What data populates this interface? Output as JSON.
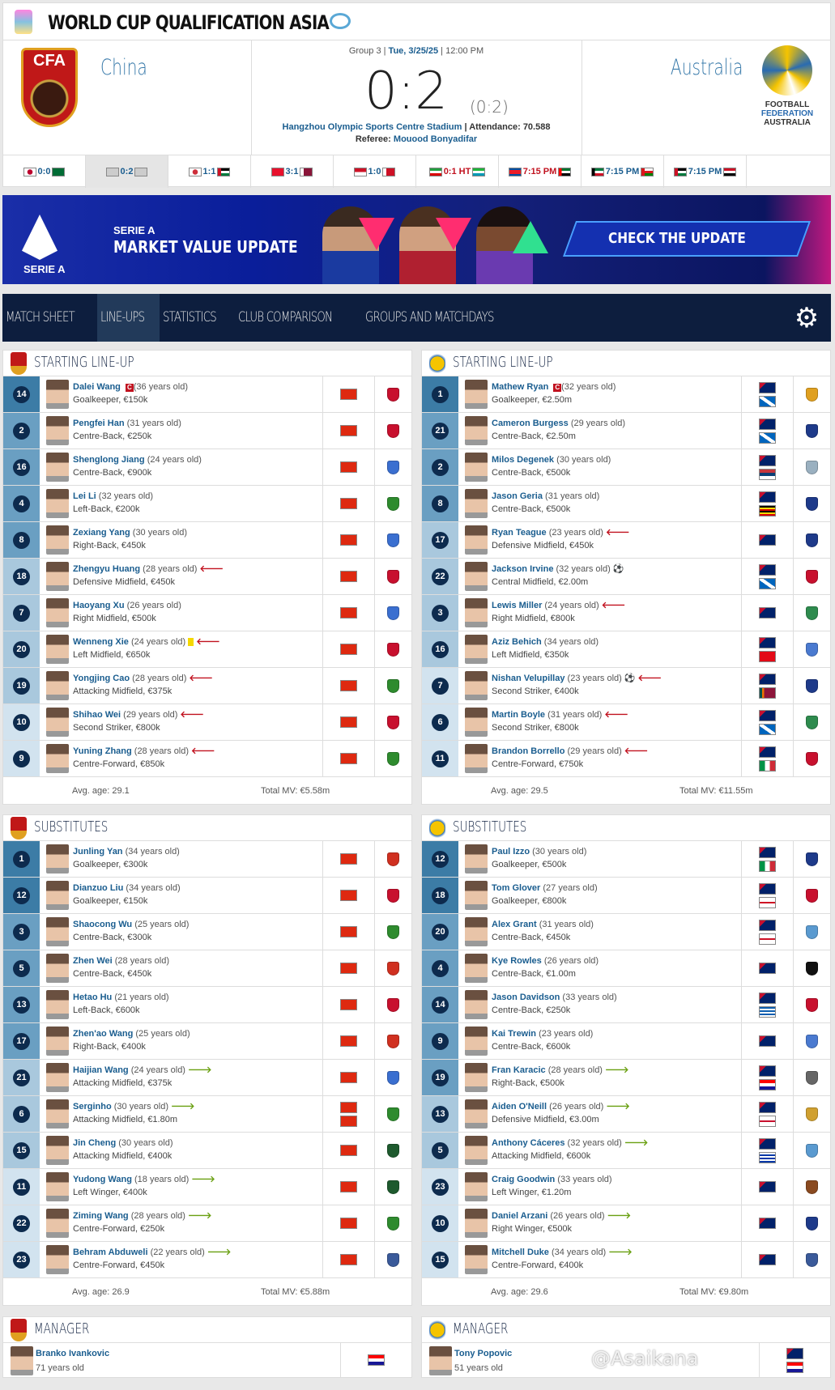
{
  "competition": {
    "title": "WORLD CUP QUALIFICATION ASIA",
    "logo_icon": "competition-logo",
    "stadium_icon": "stadium-plus-icon"
  },
  "match": {
    "home": "China",
    "away": "Australia",
    "home_crest_text": "CFA",
    "away_crest_lines": [
      "FOOTBALL",
      "FEDERATION",
      "AUSTRALIA"
    ],
    "group": "Group 3",
    "date": "Tue, 3/25/25",
    "time": "12:00 PM",
    "score": "0:2",
    "halftime": "(0:2)",
    "stadium": "Hangzhou Olympic Sports Centre Stadium",
    "attendance_label": "Attendance:",
    "attendance": "70.588",
    "referee_label": "Referee:",
    "referee": "Mouood Bonyadifar"
  },
  "other_matches": [
    {
      "home": "JPN",
      "away": "KSA",
      "result": "0:0",
      "state": "final"
    },
    {
      "home": "CHN",
      "away": "AUS",
      "result": "0:2",
      "state": "final",
      "active": true
    },
    {
      "home": "KOR",
      "away": "JOR",
      "result": "1:1",
      "state": "final"
    },
    {
      "home": "KGZ",
      "away": "QAT",
      "result": "3:1",
      "state": "final"
    },
    {
      "home": "IDN",
      "away": "BHR",
      "result": "1:0",
      "state": "final"
    },
    {
      "home": "IRN",
      "away": "UZB",
      "result": "0:1 HT",
      "state": "live"
    },
    {
      "home": "PRK",
      "away": "UAE",
      "result": "7:15 PM",
      "state": "live"
    },
    {
      "home": "KUW",
      "away": "OMA",
      "result": "7:15 PM",
      "state": "upcoming"
    },
    {
      "home": "PLE",
      "away": "IRQ",
      "result": "7:15 PM",
      "state": "upcoming"
    }
  ],
  "banner": {
    "logo_text": "SERIE A",
    "line1": "SERIE A",
    "line2": "MARKET VALUE UPDATE",
    "cta": "CHECK THE UPDATE"
  },
  "nav": {
    "tabs": [
      "MATCH SHEET",
      "LINE-UPS",
      "STATISTICS",
      "CLUB COMPARISON",
      "GROUPS AND MATCHDAYS"
    ],
    "active": 1,
    "settings_icon": "gear-icon"
  },
  "labels": {
    "starting": "STARTING LINE-UP",
    "subs": "SUBSTITUTES",
    "manager": "MANAGER",
    "avg_prefix": "Avg. age: ",
    "mv_prefix": "Total MV: "
  },
  "lineups": {
    "home_start": {
      "avg_age": "29.1",
      "total_mv": "€5.58m",
      "players": [
        {
          "num": "14",
          "name": "Dalei Wang",
          "age": "(36 years old)",
          "pos": "Goalkeeper, €150k",
          "g": 0,
          "nat": [
            "CN"
          ],
          "club": "#c8102e",
          "ev": [
            "cap"
          ]
        },
        {
          "num": "2",
          "name": "Pengfei Han",
          "age": "(31 years old)",
          "pos": "Centre-Back, €250k",
          "g": 1,
          "nat": [
            "CN"
          ],
          "club": "#c8102e",
          "ev": []
        },
        {
          "num": "16",
          "name": "Shenglong Jiang",
          "age": "(24 years old)",
          "pos": "Centre-Back, €900k",
          "g": 1,
          "nat": [
            "CN"
          ],
          "club": "#3a6fd0",
          "ev": []
        },
        {
          "num": "4",
          "name": "Lei Li",
          "age": "(32 years old)",
          "pos": "Left-Back, €200k",
          "g": 1,
          "nat": [
            "CN"
          ],
          "club": "#2e8b2e",
          "ev": []
        },
        {
          "num": "8",
          "name": "Zexiang Yang",
          "age": "(30 years old)",
          "pos": "Right-Back, €450k",
          "g": 1,
          "nat": [
            "CN"
          ],
          "club": "#3a6fd0",
          "ev": []
        },
        {
          "num": "18",
          "name": "Zhengyu Huang",
          "age": "(28 years old)",
          "pos": "Defensive Midfield, €450k",
          "g": 2,
          "nat": [
            "CN"
          ],
          "club": "#c8102e",
          "ev": [
            "off"
          ]
        },
        {
          "num": "7",
          "name": "Haoyang Xu",
          "age": "(26 years old)",
          "pos": "Right Midfield, €500k",
          "g": 2,
          "nat": [
            "CN"
          ],
          "club": "#3a6fd0",
          "ev": []
        },
        {
          "num": "20",
          "name": "Wenneng Xie",
          "age": "(24 years old)",
          "pos": "Left Midfield, €650k",
          "g": 2,
          "nat": [
            "CN"
          ],
          "club": "#c8102e",
          "ev": [
            "yc",
            "off"
          ]
        },
        {
          "num": "19",
          "name": "Yongjing Cao",
          "age": "(28 years old)",
          "pos": "Attacking Midfield, €375k",
          "g": 2,
          "nat": [
            "CN"
          ],
          "club": "#2e8b2e",
          "ev": [
            "off"
          ]
        },
        {
          "num": "10",
          "name": "Shihao Wei",
          "age": "(29 years old)",
          "pos": "Second Striker, €800k",
          "g": 3,
          "nat": [
            "CN"
          ],
          "club": "#c8102e",
          "ev": [
            "off"
          ]
        },
        {
          "num": "9",
          "name": "Yuning Zhang",
          "age": "(28 years old)",
          "pos": "Centre-Forward, €850k",
          "g": 3,
          "nat": [
            "CN"
          ],
          "club": "#2e8b2e",
          "ev": [
            "off"
          ]
        }
      ]
    },
    "away_start": {
      "avg_age": "29.5",
      "total_mv": "€11.55m",
      "players": [
        {
          "num": "1",
          "name": "Mathew Ryan",
          "age": "(32 years old)",
          "pos": "Goalkeeper, €2.50m",
          "g": 0,
          "nat": [
            "AU",
            "SCO"
          ],
          "club": "#e0a020",
          "ev": [
            "cap"
          ]
        },
        {
          "num": "21",
          "name": "Cameron Burgess",
          "age": "(29 years old)",
          "pos": "Centre-Back, €2.50m",
          "g": 1,
          "nat": [
            "AU",
            "SCO"
          ],
          "club": "#1e3a8a",
          "ev": []
        },
        {
          "num": "2",
          "name": "Milos Degenek",
          "age": "(30 years old)",
          "pos": "Centre-Back, €500k",
          "g": 1,
          "nat": [
            "AU",
            "SRB"
          ],
          "club": "#9ab0c0",
          "ev": []
        },
        {
          "num": "8",
          "name": "Jason Geria",
          "age": "(31 years old)",
          "pos": "Centre-Back, €500k",
          "g": 1,
          "nat": [
            "AU",
            "UGA"
          ],
          "club": "#1e3a8a",
          "ev": []
        },
        {
          "num": "17",
          "name": "Ryan Teague",
          "age": "(23 years old)",
          "pos": "Defensive Midfield, €450k",
          "g": 2,
          "nat": [
            "AU"
          ],
          "club": "#1e3a8a",
          "ev": [
            "off"
          ]
        },
        {
          "num": "22",
          "name": "Jackson Irvine",
          "age": "(32 years old)",
          "pos": "Central Midfield, €2.00m",
          "g": 2,
          "nat": [
            "AU",
            "SCO"
          ],
          "club": "#c8102e",
          "ev": [
            "goal"
          ]
        },
        {
          "num": "3",
          "name": "Lewis Miller",
          "age": "(24 years old)",
          "pos": "Right Midfield, €800k",
          "g": 2,
          "nat": [
            "AU"
          ],
          "club": "#2e8b4e",
          "ev": [
            "off"
          ]
        },
        {
          "num": "16",
          "name": "Aziz Behich",
          "age": "(34 years old)",
          "pos": "Left Midfield, €350k",
          "g": 2,
          "nat": [
            "AU",
            "TUR"
          ],
          "club": "#4a7ad0",
          "ev": []
        },
        {
          "num": "7",
          "name": "Nishan Velupillay",
          "age": "(23 years old)",
          "pos": "Second Striker, €400k",
          "g": 3,
          "nat": [
            "AU",
            "SRI"
          ],
          "club": "#1e3a8a",
          "ev": [
            "goal",
            "off"
          ]
        },
        {
          "num": "6",
          "name": "Martin Boyle",
          "age": "(31 years old)",
          "pos": "Second Striker, €800k",
          "g": 3,
          "nat": [
            "AU",
            "SCO"
          ],
          "club": "#2e8b4e",
          "ev": [
            "off"
          ]
        },
        {
          "num": "11",
          "name": "Brandon Borrello",
          "age": "(29 years old)",
          "pos": "Centre-Forward, €750k",
          "g": 3,
          "nat": [
            "AU",
            "ITA"
          ],
          "club": "#c8102e",
          "ev": [
            "off"
          ]
        }
      ]
    },
    "home_subs": {
      "avg_age": "26.9",
      "total_mv": "€5.88m",
      "players": [
        {
          "num": "1",
          "name": "Junling Yan",
          "age": "(34 years old)",
          "pos": "Goalkeeper, €300k",
          "g": 0,
          "nat": [
            "CN"
          ],
          "club": "#d03020",
          "ev": []
        },
        {
          "num": "12",
          "name": "Dianzuo Liu",
          "age": "(34 years old)",
          "pos": "Goalkeeper, €150k",
          "g": 0,
          "nat": [
            "CN"
          ],
          "club": "#c8102e",
          "ev": []
        },
        {
          "num": "3",
          "name": "Shaocong Wu",
          "age": "(25 years old)",
          "pos": "Centre-Back, €300k",
          "g": 1,
          "nat": [
            "CN"
          ],
          "club": "#2e8b2e",
          "ev": []
        },
        {
          "num": "5",
          "name": "Zhen Wei",
          "age": "(28 years old)",
          "pos": "Centre-Back, €450k",
          "g": 1,
          "nat": [
            "CN"
          ],
          "club": "#d03020",
          "ev": []
        },
        {
          "num": "13",
          "name": "Hetao Hu",
          "age": "(21 years old)",
          "pos": "Left-Back, €600k",
          "g": 1,
          "nat": [
            "CN"
          ],
          "club": "#c8102e",
          "ev": []
        },
        {
          "num": "17",
          "name": "Zhen'ao Wang",
          "age": "(25 years old)",
          "pos": "Right-Back, €400k",
          "g": 1,
          "nat": [
            "CN"
          ],
          "club": "#d03020",
          "ev": []
        },
        {
          "num": "21",
          "name": "Haijian Wang",
          "age": "(24 years old)",
          "pos": "Attacking Midfield, €375k",
          "g": 2,
          "nat": [
            "CN"
          ],
          "club": "#3a6fd0",
          "ev": [
            "on"
          ]
        },
        {
          "num": "6",
          "name": "Serginho",
          "age": "(30 years old)",
          "pos": "Attacking Midfield, €1.80m",
          "g": 2,
          "nat": [
            "CN",
            "CN"
          ],
          "club": "#2e8b2e",
          "ev": [
            "on"
          ]
        },
        {
          "num": "15",
          "name": "Jin Cheng",
          "age": "(30 years old)",
          "pos": "Attacking Midfield, €400k",
          "g": 2,
          "nat": [
            "CN"
          ],
          "club": "#1e5a2e",
          "ev": []
        },
        {
          "num": "11",
          "name": "Yudong Wang",
          "age": "(18 years old)",
          "pos": "Left Winger, €400k",
          "g": 3,
          "nat": [
            "CN"
          ],
          "club": "#1e5a2e",
          "ev": [
            "on"
          ]
        },
        {
          "num": "22",
          "name": "Ziming Wang",
          "age": "(28 years old)",
          "pos": "Centre-Forward, €250k",
          "g": 3,
          "nat": [
            "CN"
          ],
          "club": "#2e8b2e",
          "ev": [
            "on"
          ]
        },
        {
          "num": "23",
          "name": "Behram Abduweli",
          "age": "(22 years old)",
          "pos": "Centre-Forward, €450k",
          "g": 3,
          "nat": [
            "CN"
          ],
          "club": "#3a5a9a",
          "ev": [
            "on"
          ]
        }
      ]
    },
    "away_subs": {
      "avg_age": "29.6",
      "total_mv": "€9.80m",
      "players": [
        {
          "num": "12",
          "name": "Paul Izzo",
          "age": "(30 years old)",
          "pos": "Goalkeeper, €500k",
          "g": 0,
          "nat": [
            "AU",
            "ITA"
          ],
          "club": "#1e3a8a",
          "ev": []
        },
        {
          "num": "18",
          "name": "Tom Glover",
          "age": "(27 years old)",
          "pos": "Goalkeeper, €800k",
          "g": 0,
          "nat": [
            "AU",
            "ENG"
          ],
          "club": "#c8102e",
          "ev": []
        },
        {
          "num": "20",
          "name": "Alex Grant",
          "age": "(31 years old)",
          "pos": "Centre-Back, €450k",
          "g": 1,
          "nat": [
            "AU",
            "ENG"
          ],
          "club": "#5a9ad0",
          "ev": []
        },
        {
          "num": "4",
          "name": "Kye Rowles",
          "age": "(26 years old)",
          "pos": "Centre-Back, €1.00m",
          "g": 1,
          "nat": [
            "AU"
          ],
          "club": "#111111",
          "ev": []
        },
        {
          "num": "14",
          "name": "Jason Davidson",
          "age": "(33 years old)",
          "pos": "Centre-Back, €250k",
          "g": 1,
          "nat": [
            "AU",
            "GRE"
          ],
          "club": "#c8102e",
          "ev": []
        },
        {
          "num": "9",
          "name": "Kai Trewin",
          "age": "(23 years old)",
          "pos": "Centre-Back, €600k",
          "g": 1,
          "nat": [
            "AU"
          ],
          "club": "#4a7ad0",
          "ev": []
        },
        {
          "num": "19",
          "name": "Fran Karacic",
          "age": "(28 years old)",
          "pos": "Right-Back, €500k",
          "g": 1,
          "nat": [
            "AU",
            "CRO"
          ],
          "club": "#666666",
          "ev": [
            "on"
          ]
        },
        {
          "num": "13",
          "name": "Aiden O'Neill",
          "age": "(26 years old)",
          "pos": "Defensive Midfield, €3.00m",
          "g": 2,
          "nat": [
            "AU",
            "NIR"
          ],
          "club": "#d0a030",
          "ev": [
            "on"
          ]
        },
        {
          "num": "5",
          "name": "Anthony Cáceres",
          "age": "(32 years old)",
          "pos": "Attacking Midfield, €600k",
          "g": 2,
          "nat": [
            "AU",
            "URU"
          ],
          "club": "#5a9ad0",
          "ev": [
            "on"
          ]
        },
        {
          "num": "23",
          "name": "Craig Goodwin",
          "age": "(33 years old)",
          "pos": "Left Winger, €1.20m",
          "g": 3,
          "nat": [
            "AU"
          ],
          "club": "#8a4a20",
          "ev": []
        },
        {
          "num": "10",
          "name": "Daniel Arzani",
          "age": "(26 years old)",
          "pos": "Right Winger, €500k",
          "g": 3,
          "nat": [
            "AU"
          ],
          "club": "#1e3a8a",
          "ev": [
            "on"
          ]
        },
        {
          "num": "15",
          "name": "Mitchell Duke",
          "age": "(34 years old)",
          "pos": "Centre-Forward, €400k",
          "g": 3,
          "nat": [
            "AU"
          ],
          "club": "#3a5a9a",
          "ev": [
            "on"
          ]
        }
      ]
    }
  },
  "managers": {
    "home": {
      "name": "Branko Ivankovic",
      "age": "71 years old",
      "nat": [
        "CRO"
      ]
    },
    "away": {
      "name": "Tony Popovic",
      "age": "51 years old",
      "nat": [
        "AU",
        "CRO"
      ]
    }
  },
  "watermark": "@Asaikana",
  "colors": {
    "link": "#1a5d8f",
    "nav_bg": "#0d1e3e",
    "live_red": "#c1121f",
    "sub_on": "#6aa012",
    "position_bands": [
      "#3c7ca6",
      "#6a9fc2",
      "#a9c8dd",
      "#d2e3ef"
    ]
  }
}
